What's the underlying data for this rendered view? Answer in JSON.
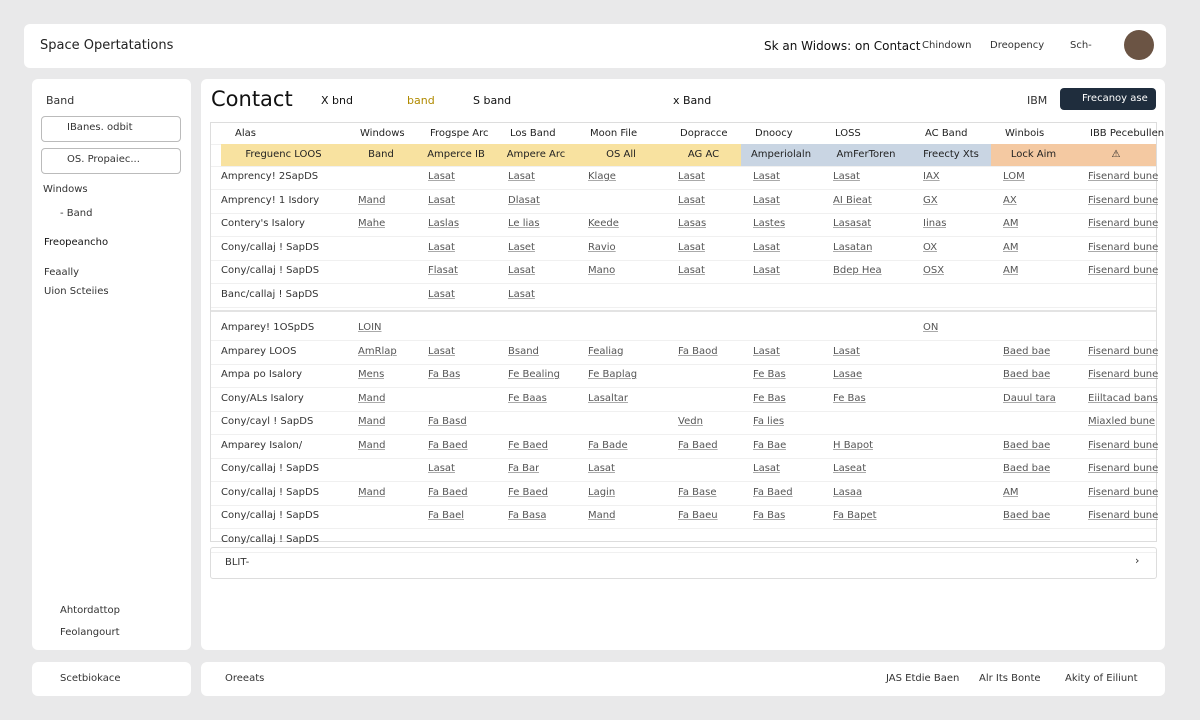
{
  "header": {
    "title": "Space Opertatations",
    "context": "Sk an Widows: on Contact",
    "links": [
      "Chindown",
      "Dreopency",
      "Sch-"
    ]
  },
  "sidebar": {
    "section": "Band",
    "selects": [
      "IBanes. odbit",
      "OS. Propaiec..."
    ],
    "items": [
      "Windows",
      "- Band",
      "Freopeancho",
      "Feaally",
      "Uion Scteiies"
    ],
    "bottom": [
      "Ahtordattop",
      "Feolangourt"
    ],
    "footer": "Scetbiokace"
  },
  "toolbar": {
    "title": "Contact",
    "filters": [
      "X bnd",
      "band",
      "S band",
      "x Band"
    ],
    "org": "IBM",
    "button": "Frecanoy ase"
  },
  "table": {
    "columns": [
      "Alas",
      "Windows",
      "Frogspe Arc",
      "Los Band",
      "Moon File",
      "Dopracce",
      "Dnoocy",
      "LOSS",
      "AC Band",
      "Winbois",
      "IBB Pecebullen"
    ],
    "highlight_row": [
      "Freguenc LOOS",
      "Band",
      "Amperce IB",
      "Ampere Arc",
      "OS All",
      "AG AC",
      "Amperiolaln",
      "AmFerToren",
      "Freecty Xts",
      "Lock Aim",
      "⚠"
    ],
    "rows": [
      [
        "Amprency! 2SapDS",
        null,
        "Lasat",
        "Lasat",
        "Klage",
        "Lasat",
        "Lasat",
        "Lasat",
        "IAX",
        "LOM",
        "Fisenard bune"
      ],
      [
        "Amprency! 1 Isdory",
        "Mand",
        "Lasat",
        "Dlasat",
        null,
        "Lasat",
        "Lasat",
        "AI Bieat",
        "GX",
        "AX",
        "Fisenard bune"
      ],
      [
        "Contery's Isalory",
        "Mahe",
        "Laslas",
        "Le lias",
        "Keede",
        "Lasas",
        "Lastes",
        "Lasasat",
        "Iinas",
        "AM",
        "Fisenard bune"
      ],
      [
        "Cony/callaj ! SapDS",
        null,
        "Lasat",
        "Laset",
        "Ravio",
        "Lasat",
        "Lasat",
        "Lasatan",
        "OX",
        "AM",
        "Fisenard bune"
      ],
      [
        "Cony/callaj ! SapDS",
        null,
        "Flasat",
        "Lasat",
        "Mano",
        "Lasat",
        "Lasat",
        "Bdep Hea",
        "OSX",
        "AM",
        "Fisenard bune"
      ],
      [
        "Banc/callaj ! SapDS",
        null,
        "Lasat",
        "Lasat",
        null,
        null,
        null,
        null,
        null,
        null,
        null
      ],
      [
        "Amparey! 1OSpDS",
        "LOIN",
        null,
        null,
        null,
        null,
        null,
        null,
        "ON",
        null,
        null
      ],
      [
        "Amparey LOOS",
        "AmRlap",
        "Lasat",
        "Bsand",
        "Fealiag",
        "Fa Baod",
        "Lasat",
        "Lasat",
        null,
        "Baed bae",
        "Fisenard bune"
      ],
      [
        "Ampa po Isalory",
        "Mens",
        "Fa Bas",
        "Fe Bealing",
        "Fe Baplag",
        null,
        "Fe Bas",
        "Lasae",
        null,
        "Baed bae",
        "Fisenard bune"
      ],
      [
        "Cony/ALs Isalory",
        "Mand",
        null,
        "Fe Baas",
        "Lasaltar",
        null,
        "Fe Bas",
        "Fe Bas",
        null,
        "Dauul tara",
        "Eiiltacad bans"
      ],
      [
        "Cony/cayl ! SapDS",
        "Mand",
        "Fa Basd",
        null,
        null,
        "Vedn",
        "Fa lies",
        null,
        null,
        null,
        "Miaxled bune"
      ],
      [
        "Amparey Isalon/",
        "Mand",
        "Fa Baed",
        "Fe Baed",
        "Fa Bade",
        "Fa Baed",
        "Fa Bae",
        "H Bapot",
        null,
        "Baed bae",
        "Fisenard bune"
      ],
      [
        "Cony/callaj ! SapDS",
        null,
        "Lasat",
        "Fa Bar",
        "Lasat",
        null,
        "Lasat",
        "Laseat",
        null,
        "Baed bae",
        "Fisenard bune"
      ],
      [
        "Cony/callaj ! SapDS",
        "Mand",
        "Fa Baed",
        "Fe Baed",
        "Lagin",
        "Fa Base",
        "Fa Baed",
        "Lasaa",
        null,
        "AM",
        "Fisenard bune"
      ],
      [
        "Cony/callaj ! SapDS",
        null,
        "Fa Bael",
        "Fa Basa",
        "Mand",
        "Fa Baeu",
        "Fa Bas",
        "Fa Bapet",
        null,
        "Baed bae",
        "Fisenard bune"
      ],
      [
        "Cony/callaj ! SapDS",
        null,
        null,
        null,
        null,
        null,
        null,
        null,
        null,
        null,
        null
      ]
    ],
    "pager": "BLIT-"
  },
  "statusbar": {
    "left": "Oreeats",
    "items": [
      "JAS Etdie Baen",
      "Alr Its Bonte",
      "Akity of Eiliunt"
    ]
  }
}
